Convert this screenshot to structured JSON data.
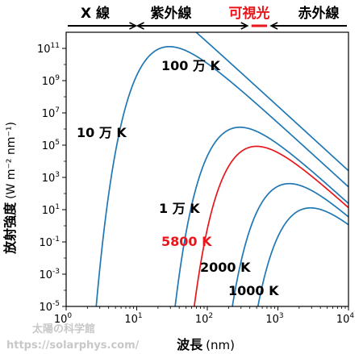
{
  "chart_data": {
    "type": "line",
    "xlabel": "波長",
    "xlabel_unit": "(nm)",
    "ylabel": "放射強度",
    "ylabel_unit": "(W m⁻² nm⁻¹)",
    "x_scale": "log",
    "y_scale": "log",
    "xlim": [
      1,
      10000
    ],
    "ylim": [
      1e-05,
      1000000000000.0
    ],
    "x_ticks": [
      {
        "base": "10",
        "exp": "0",
        "value": 1
      },
      {
        "base": "10",
        "exp": "1",
        "value": 10
      },
      {
        "base": "10",
        "exp": "2",
        "value": 100
      },
      {
        "base": "10",
        "exp": "3",
        "value": 1000
      },
      {
        "base": "10",
        "exp": "4",
        "value": 10000
      }
    ],
    "y_ticks": [
      {
        "base": "10",
        "exp": "-5",
        "value": 1e-05
      },
      {
        "base": "10",
        "exp": "-3",
        "value": 0.001
      },
      {
        "base": "10",
        "exp": "-1",
        "value": 0.1
      },
      {
        "base": "10",
        "exp": "1",
        "value": 10.0
      },
      {
        "base": "10",
        "exp": "3",
        "value": 1000.0
      },
      {
        "base": "10",
        "exp": "5",
        "value": 100000.0
      },
      {
        "base": "10",
        "exp": "7",
        "value": 10000000.0
      },
      {
        "base": "10",
        "exp": "9",
        "value": 1000000000.0
      },
      {
        "base": "10",
        "exp": "11",
        "value": 100000000000.0
      }
    ],
    "series": [
      {
        "name": "100 万 K",
        "temperature": 1000000,
        "color": "#1f77b4"
      },
      {
        "name": "10 万 K",
        "temperature": 100000,
        "color": "#1f77b4"
      },
      {
        "name": "1 万 K",
        "temperature": 10000,
        "color": "#1f77b4"
      },
      {
        "name": "5800 K",
        "temperature": 5800,
        "color": "#e8161b"
      },
      {
        "name": "2000 K",
        "temperature": 2000,
        "color": "#1f77b4"
      },
      {
        "name": "1000 K",
        "temperature": 1000,
        "color": "#1f77b4"
      }
    ],
    "bands": [
      {
        "label": "X 線",
        "range_nm": [
          1,
          10
        ]
      },
      {
        "label": "紫外線",
        "range_nm": [
          10,
          380
        ]
      },
      {
        "label": "可視光",
        "range_nm": [
          380,
          780
        ],
        "color": "#e8161b"
      },
      {
        "label": "赤外線",
        "range_nm": [
          780,
          10000
        ]
      }
    ]
  },
  "watermark": {
    "line1": "太陽の科学館",
    "line2": "https://solarphys.com/"
  }
}
